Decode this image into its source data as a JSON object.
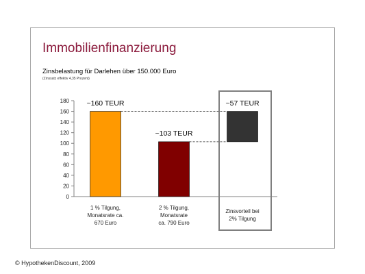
{
  "title": "Immobilienfinanzierung",
  "subtitle": "Zinsbelastung für Darlehen über 150.000 Euro",
  "note": "(Zinssatz effektiv 4,35 Prozent)",
  "copyright": "© HypothekenDiscount, 2009",
  "chart_data": {
    "type": "bar",
    "ylim": [
      0,
      180
    ],
    "yticks": [
      0,
      20,
      40,
      60,
      80,
      100,
      120,
      140,
      160,
      180
    ],
    "categories": [
      "1 % Tilgung, Monatsrate ca. 670 Euro",
      "2 % Tilgung, Monatsrate ca. 790 Euro",
      "Zinsvorteil bei 2% Tilgung"
    ],
    "category_lines": [
      [
        "1 % Tilgung,",
        "Monatsrate ca.",
        "670 Euro"
      ],
      [
        "2 % Tilgung,",
        "Monatsrate",
        "ca. 790 Euro"
      ],
      [
        "Zinsvorteil bei",
        "2% Tilgung"
      ]
    ],
    "bars": [
      {
        "base": 0,
        "value": 160,
        "label": "~160 TEUR",
        "color": "#ff9900"
      },
      {
        "base": 0,
        "value": 103,
        "label": "~103 TEUR",
        "color": "#800000"
      },
      {
        "base": 103,
        "value": 160,
        "label": "~57 TEUR",
        "color": "#333333"
      }
    ],
    "grid": false,
    "legend": "none"
  }
}
